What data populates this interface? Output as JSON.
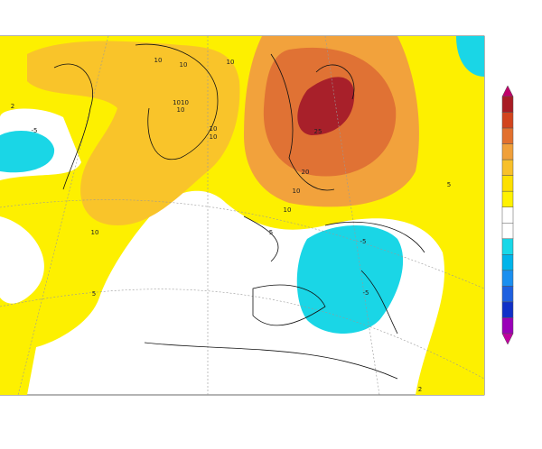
{
  "map": {
    "contour_labels": [
      "10",
      "10",
      "10",
      "1010",
      "10",
      "10",
      "10",
      "25",
      "20",
      "10",
      "10",
      "10",
      "5",
      "5",
      "-5",
      "-5",
      "-5",
      "5",
      "2",
      "2"
    ],
    "colorbar": {
      "colors": [
        "#c0006a",
        "#a81c24",
        "#d2441e",
        "#e2702e",
        "#f0a03a",
        "#f8c02a",
        "#fde000",
        "#fff200",
        "#ffffff",
        "#ffffff",
        "#18d8e8",
        "#00b4ea",
        "#1a8ff0",
        "#1e60e0",
        "#1030c8",
        "#9a00b8",
        "#c000a0"
      ]
    }
  }
}
